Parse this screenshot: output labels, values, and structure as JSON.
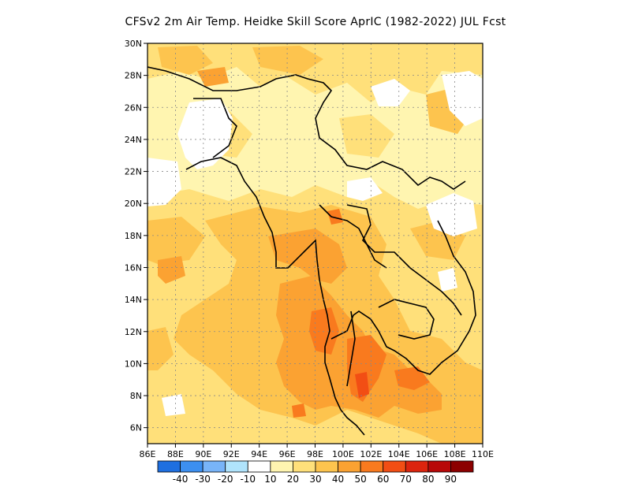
{
  "title": "CFSv2  2m Air Temp. Heidke Skill Score AprIC (1982-2022) JUL Fcst",
  "map": {
    "lon_range": [
      86,
      110
    ],
    "lat_range": [
      5,
      30
    ],
    "lon_ticks": [
      "86E",
      "88E",
      "90E",
      "92E",
      "94E",
      "96E",
      "98E",
      "100E",
      "102E",
      "104E",
      "106E",
      "108E",
      "110E"
    ],
    "lat_ticks": [
      "6N",
      "8N",
      "10N",
      "12N",
      "14N",
      "16N",
      "18N",
      "20N",
      "22N",
      "24N",
      "26N",
      "28N",
      "30N"
    ],
    "grid": true,
    "region": "Myanmar, Thailand, Laos, Cambodia, Vietnam, Bangladesh and surrounding waters"
  },
  "colorbar": {
    "colors": [
      "#1e6fe0",
      "#3c8ff0",
      "#78b4f8",
      "#b0e4fc",
      "#ffffff",
      "#fff5b0",
      "#ffe07a",
      "#fdc44e",
      "#fba232",
      "#f97a1e",
      "#f24e14",
      "#dc240e",
      "#b80808",
      "#8c0000"
    ],
    "labels": [
      "-40",
      "-30",
      "-20",
      "-10",
      "10",
      "20",
      "30",
      "40",
      "50",
      "60",
      "70",
      "80",
      "90"
    ]
  }
}
